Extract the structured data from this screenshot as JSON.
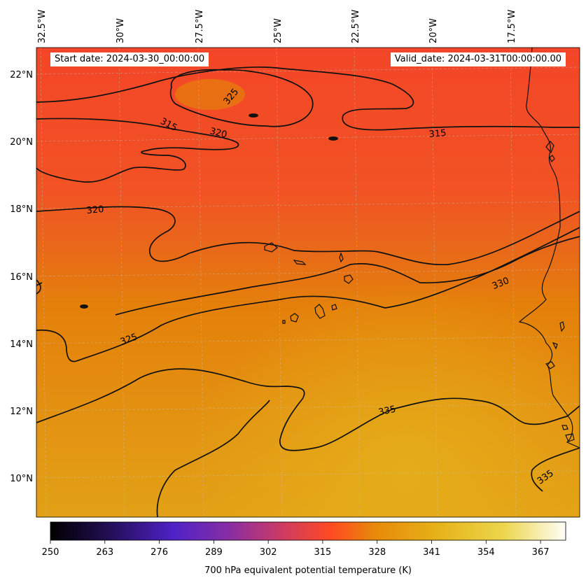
{
  "header": {
    "start_label": "Start date: 2024-03-30_00:00:00",
    "valid_label": "Valid_date: 2024-03-31T00:00:00.00"
  },
  "map": {
    "lon_labels": [
      "32.5°W",
      "30°W",
      "27.5°W",
      "25°W",
      "22.5°W",
      "20°W",
      "17.5°W"
    ],
    "lat_labels": [
      "22°N",
      "20°N",
      "18°N",
      "16°N",
      "14°N",
      "12°N",
      "10°N"
    ],
    "contour_labels": [
      "325",
      "315",
      "320",
      "315",
      "320",
      "330",
      "325",
      "335",
      "335"
    ],
    "colors": {
      "background_low": "#e08306",
      "background_high": "#f04a25",
      "contour": "#111111",
      "coastline": "#111111",
      "grid": "#c8c8c8"
    }
  },
  "colorbar": {
    "ticks": [
      "250",
      "263",
      "276",
      "289",
      "302",
      "315",
      "328",
      "341",
      "354",
      "367"
    ],
    "label": "700 hPa equivalent potential temperature (K)",
    "colormap": [
      "#000000",
      "#2a1060",
      "#5022c8",
      "#8a30a0",
      "#d03c60",
      "#ff4a22",
      "#e88a08",
      "#e6b41a",
      "#ecd84a",
      "#fffef8"
    ]
  }
}
